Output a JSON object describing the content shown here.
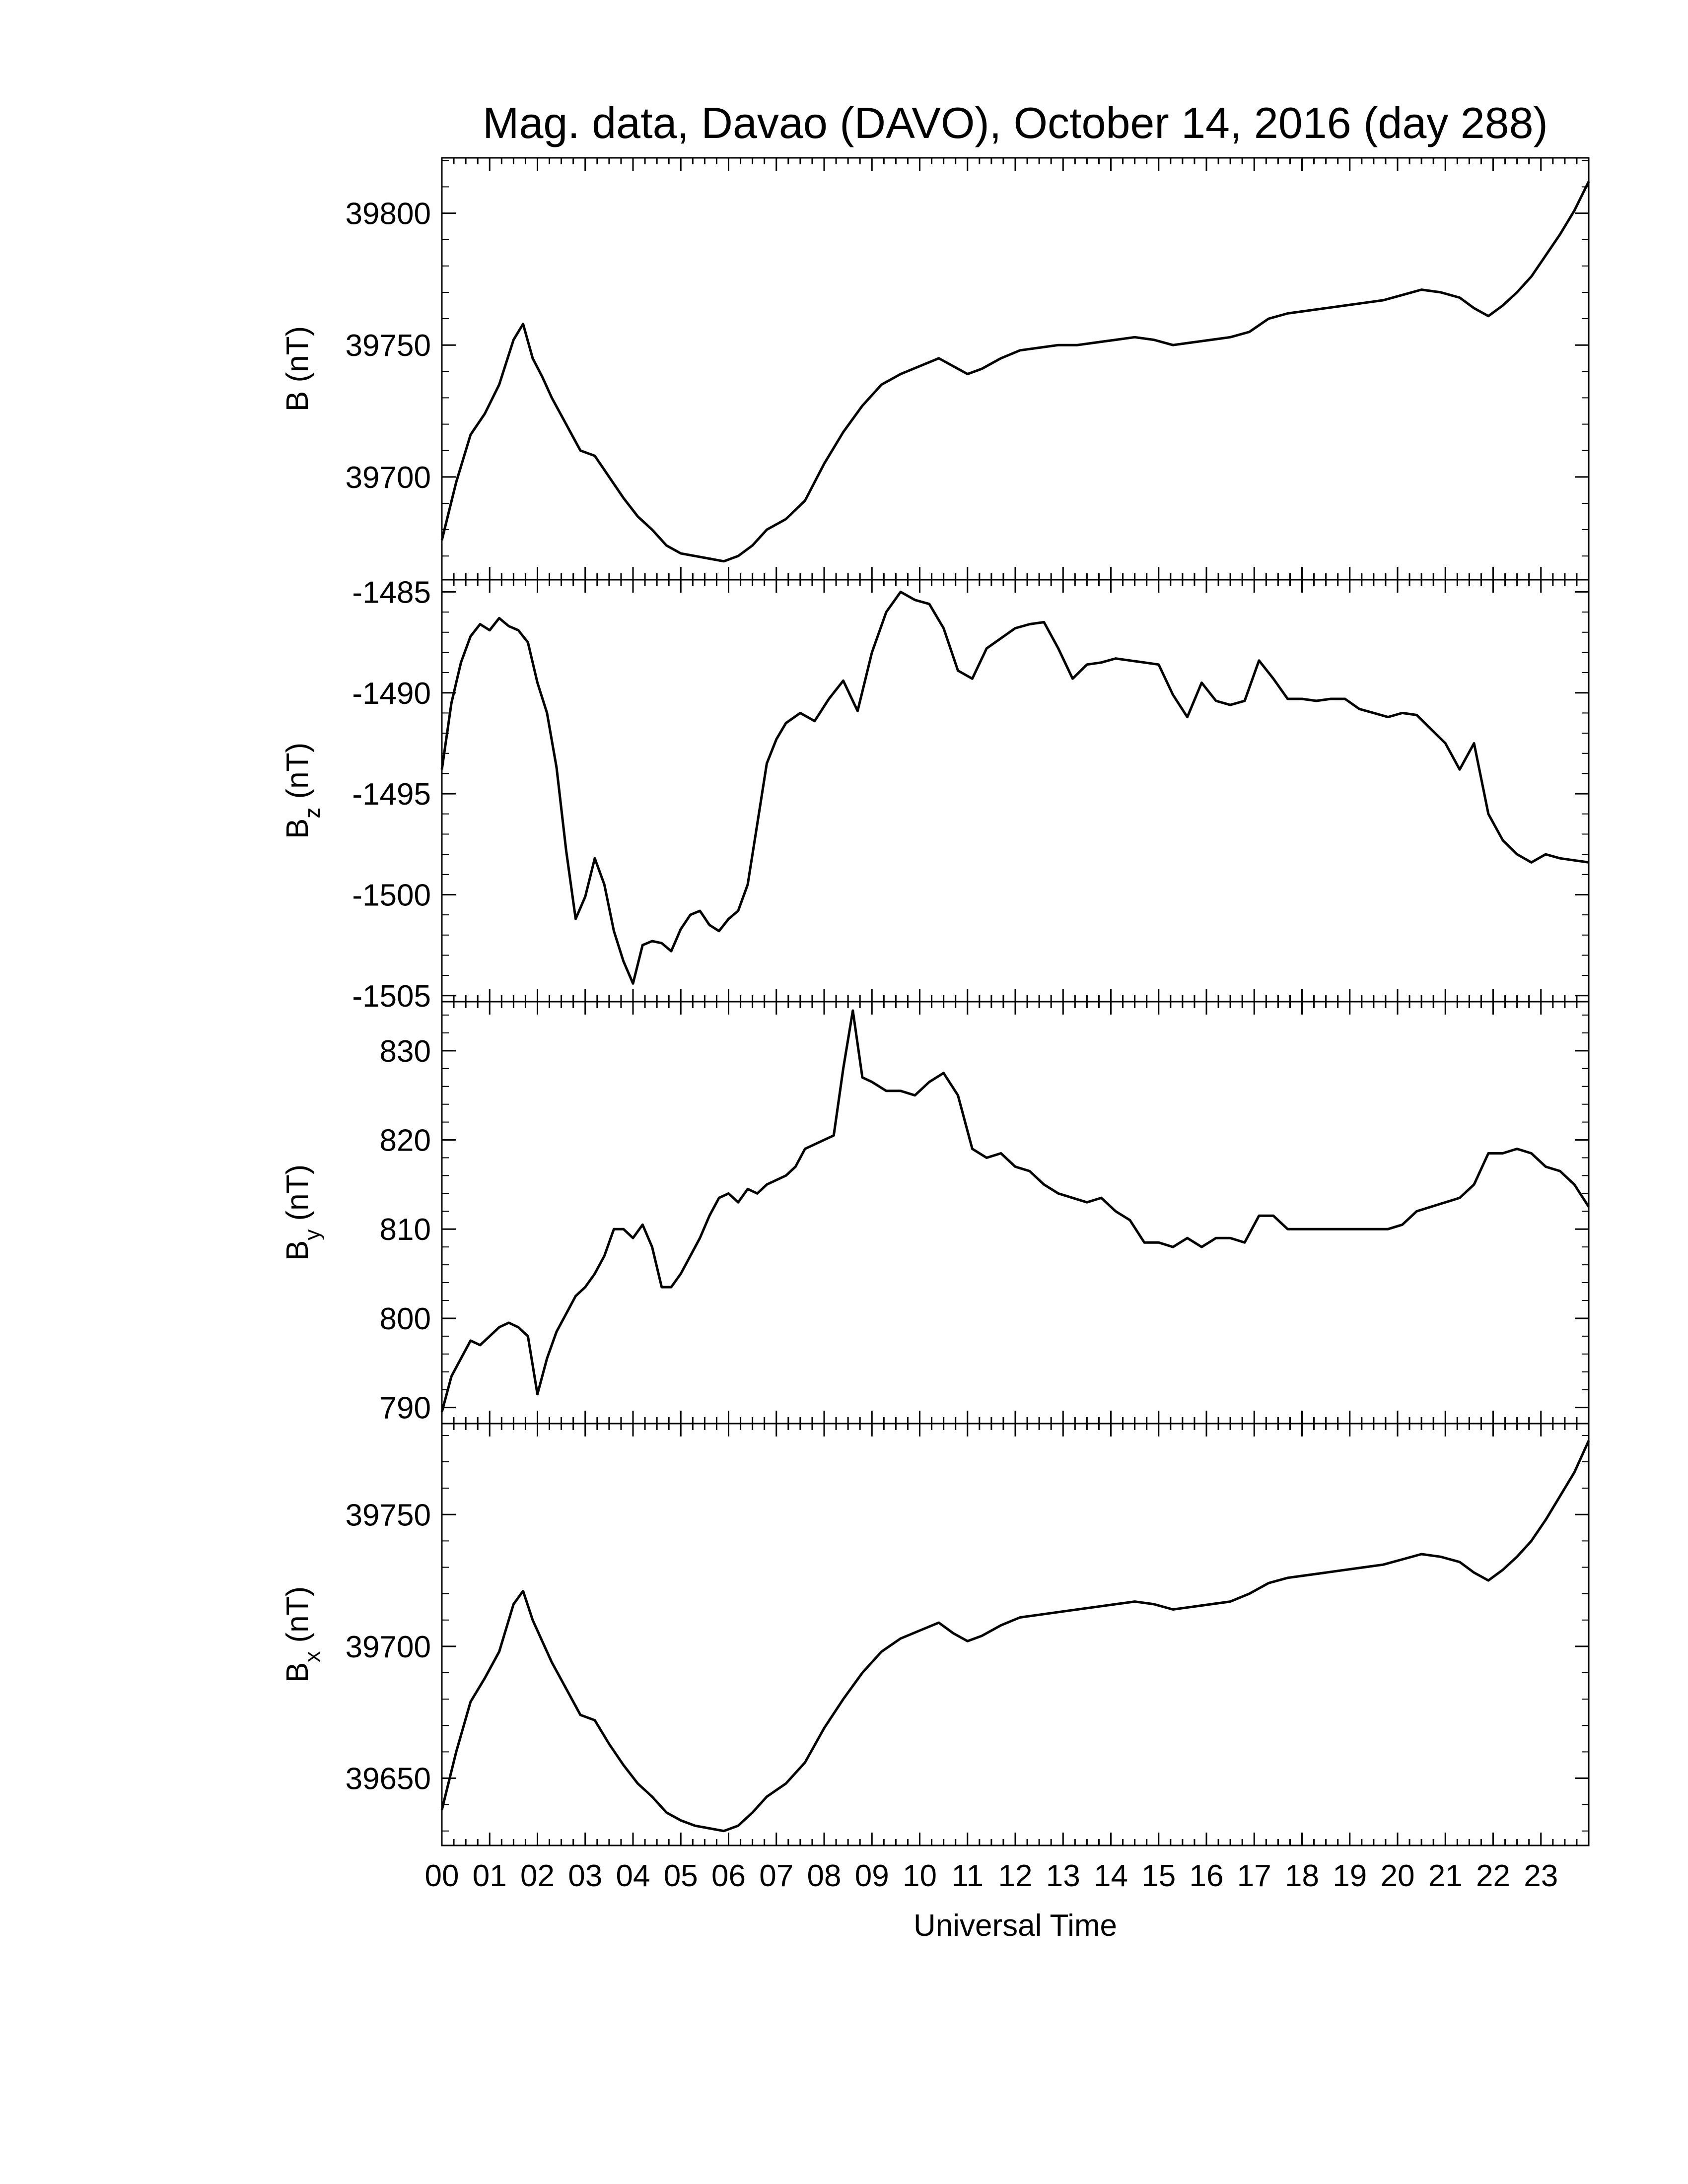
{
  "title": "Mag. data, Davao (DAVO), October 14, 2016 (day 288)",
  "x_axis": {
    "label": "Universal Time",
    "tick_labels": [
      "00",
      "01",
      "02",
      "03",
      "04",
      "05",
      "06",
      "07",
      "08",
      "09",
      "10",
      "11",
      "12",
      "13",
      "14",
      "15",
      "16",
      "17",
      "18",
      "19",
      "20",
      "21",
      "22",
      "23"
    ]
  },
  "style": {
    "line_color": "#000000",
    "background": "#ffffff"
  },
  "chart_data": [
    {
      "type": "line",
      "name": "B",
      "ylabel": {
        "main": "B",
        "sub": "",
        "unit": " (nT)"
      },
      "ylim": [
        39661,
        39821
      ],
      "yticks": [
        39700,
        39750,
        39800
      ],
      "ytick_labels": [
        "39700",
        "39750",
        "39800"
      ],
      "x": [
        0,
        0.3,
        0.6,
        0.9,
        1.2,
        1.5,
        1.7,
        1.9,
        2.1,
        2.3,
        2.6,
        2.9,
        3.2,
        3.5,
        3.8,
        4.1,
        4.4,
        4.7,
        5.0,
        5.3,
        5.6,
        5.9,
        6.2,
        6.5,
        6.8,
        7.2,
        7.6,
        8.0,
        8.4,
        8.8,
        9.2,
        9.6,
        10.0,
        10.4,
        10.7,
        11.0,
        11.3,
        11.7,
        12.1,
        12.5,
        12.9,
        13.3,
        13.7,
        14.1,
        14.5,
        14.9,
        15.3,
        15.7,
        16.1,
        16.5,
        16.9,
        17.3,
        17.7,
        18.1,
        18.5,
        18.9,
        19.3,
        19.7,
        20.1,
        20.5,
        20.9,
        21.3,
        21.6,
        21.9,
        22.2,
        22.5,
        22.8,
        23.1,
        23.4,
        23.7,
        24.0
      ],
      "y": [
        39676,
        39698,
        39716,
        39724,
        39735,
        39752,
        39758,
        39745,
        39738,
        39730,
        39720,
        39710,
        39708,
        39700,
        39692,
        39685,
        39680,
        39674,
        39671,
        39670,
        39669,
        39668,
        39670,
        39674,
        39680,
        39684,
        39691,
        39705,
        39717,
        39727,
        39735,
        39739,
        39742,
        39745,
        39742,
        39739,
        39741,
        39745,
        39748,
        39749,
        39750,
        39750,
        39751,
        39752,
        39753,
        39752,
        39750,
        39751,
        39752,
        39753,
        39755,
        39760,
        39762,
        39763,
        39764,
        39765,
        39766,
        39767,
        39769,
        39771,
        39770,
        39768,
        39764,
        39761,
        39765,
        39770,
        39776,
        39784,
        39792,
        39801,
        39812
      ]
    },
    {
      "type": "line",
      "name": "Bz",
      "ylabel": {
        "main": "B",
        "sub": "z",
        "unit": " (nT)"
      },
      "ylim": [
        -1505.3,
        -1484.4
      ],
      "yticks": [
        -1505,
        -1500,
        -1495,
        -1490,
        -1485
      ],
      "ytick_labels": [
        "-1505",
        "-1500",
        "-1495",
        "-1490",
        "-1485"
      ],
      "x": [
        0,
        0.2,
        0.4,
        0.6,
        0.8,
        1.0,
        1.2,
        1.4,
        1.6,
        1.8,
        2.0,
        2.2,
        2.4,
        2.6,
        2.8,
        3.0,
        3.2,
        3.4,
        3.6,
        3.8,
        4.0,
        4.2,
        4.4,
        4.6,
        4.8,
        5.0,
        5.2,
        5.4,
        5.6,
        5.8,
        6.0,
        6.2,
        6.4,
        6.6,
        6.8,
        7.0,
        7.2,
        7.5,
        7.8,
        8.1,
        8.4,
        8.7,
        9.0,
        9.3,
        9.6,
        9.9,
        10.2,
        10.5,
        10.8,
        11.1,
        11.4,
        11.7,
        12.0,
        12.3,
        12.6,
        12.9,
        13.2,
        13.5,
        13.8,
        14.1,
        14.4,
        14.7,
        15.0,
        15.3,
        15.6,
        15.9,
        16.2,
        16.5,
        16.8,
        17.1,
        17.4,
        17.7,
        18.0,
        18.3,
        18.6,
        18.9,
        19.2,
        19.5,
        19.8,
        20.1,
        20.4,
        20.7,
        21.0,
        21.3,
        21.6,
        21.9,
        22.2,
        22.5,
        22.8,
        23.1,
        23.4,
        23.7,
        24.0
      ],
      "y": [
        -1493.8,
        -1490.5,
        -1488.5,
        -1487.2,
        -1486.6,
        -1486.9,
        -1486.3,
        -1486.7,
        -1486.9,
        -1487.5,
        -1489.5,
        -1491.0,
        -1493.7,
        -1497.8,
        -1501.2,
        -1500.1,
        -1498.2,
        -1499.5,
        -1501.8,
        -1503.3,
        -1504.4,
        -1502.5,
        -1502.3,
        -1502.4,
        -1502.8,
        -1501.7,
        -1501.0,
        -1500.8,
        -1501.5,
        -1501.8,
        -1501.2,
        -1500.8,
        -1499.5,
        -1496.5,
        -1493.5,
        -1492.3,
        -1491.5,
        -1491.0,
        -1491.4,
        -1490.3,
        -1489.4,
        -1490.9,
        -1488.0,
        -1486.0,
        -1485.0,
        -1485.4,
        -1485.6,
        -1486.8,
        -1488.9,
        -1489.3,
        -1487.8,
        -1487.3,
        -1486.8,
        -1486.6,
        -1486.5,
        -1487.8,
        -1489.3,
        -1488.6,
        -1488.5,
        -1488.3,
        -1488.4,
        -1488.5,
        -1488.6,
        -1490.1,
        -1491.2,
        -1489.5,
        -1490.4,
        -1490.6,
        -1490.4,
        -1488.4,
        -1489.3,
        -1490.3,
        -1490.3,
        -1490.4,
        -1490.3,
        -1490.3,
        -1490.8,
        -1491.0,
        -1491.2,
        -1491.0,
        -1491.1,
        -1491.8,
        -1492.5,
        -1493.8,
        -1492.5,
        -1496.0,
        -1497.3,
        -1498.0,
        -1498.4,
        -1498.0,
        -1498.2,
        -1498.3,
        -1498.4
      ]
    },
    {
      "type": "line",
      "name": "By",
      "ylabel": {
        "main": "B",
        "sub": "y",
        "unit": " (nT)"
      },
      "ylim": [
        788.2,
        835.5
      ],
      "yticks": [
        790,
        800,
        810,
        820,
        830
      ],
      "ytick_labels": [
        "790",
        "800",
        "810",
        "820",
        "830"
      ],
      "x": [
        0,
        0.2,
        0.4,
        0.6,
        0.8,
        1.0,
        1.2,
        1.4,
        1.6,
        1.8,
        2.0,
        2.2,
        2.4,
        2.6,
        2.8,
        3.0,
        3.2,
        3.4,
        3.6,
        3.8,
        4.0,
        4.2,
        4.4,
        4.6,
        4.8,
        5.0,
        5.2,
        5.4,
        5.6,
        5.8,
        6.0,
        6.2,
        6.4,
        6.6,
        6.8,
        7.0,
        7.2,
        7.4,
        7.6,
        7.8,
        8.0,
        8.2,
        8.4,
        8.6,
        8.8,
        9.0,
        9.3,
        9.6,
        9.9,
        10.2,
        10.5,
        10.8,
        11.1,
        11.4,
        11.7,
        12.0,
        12.3,
        12.6,
        12.9,
        13.2,
        13.5,
        13.8,
        14.1,
        14.4,
        14.7,
        15.0,
        15.3,
        15.6,
        15.9,
        16.2,
        16.5,
        16.8,
        17.1,
        17.4,
        17.7,
        18.0,
        18.3,
        18.6,
        18.9,
        19.2,
        19.5,
        19.8,
        20.1,
        20.4,
        20.7,
        21.0,
        21.3,
        21.6,
        21.9,
        22.2,
        22.5,
        22.8,
        23.1,
        23.4,
        23.7,
        24.0
      ],
      "y": [
        789.5,
        793.5,
        795.5,
        797.5,
        797.0,
        798.0,
        799.0,
        799.5,
        799.0,
        798.0,
        791.5,
        795.5,
        798.5,
        800.5,
        802.5,
        803.5,
        805.0,
        807.0,
        810.0,
        810.0,
        809.0,
        810.5,
        808.0,
        803.5,
        803.5,
        805.0,
        807.0,
        809.0,
        811.5,
        813.5,
        814.0,
        813.0,
        814.5,
        814.0,
        815.0,
        815.5,
        816.0,
        817.0,
        819.0,
        819.5,
        820.0,
        820.5,
        828.0,
        834.5,
        827.0,
        826.5,
        825.5,
        825.5,
        825.0,
        826.5,
        827.5,
        825.0,
        819.0,
        818.0,
        818.5,
        817.0,
        816.5,
        815.0,
        814.0,
        813.5,
        813.0,
        813.5,
        812.0,
        811.0,
        808.5,
        808.5,
        808.0,
        809.0,
        808.0,
        809.0,
        809.0,
        808.5,
        811.5,
        811.5,
        810.0,
        810.0,
        810.0,
        810.0,
        810.0,
        810.0,
        810.0,
        810.0,
        810.5,
        812.0,
        812.5,
        813.0,
        813.5,
        815.0,
        818.5,
        818.5,
        819.0,
        818.5,
        817.0,
        816.5,
        815.0,
        812.5
      ]
    },
    {
      "type": "line",
      "name": "Bx",
      "ylabel": {
        "main": "B",
        "sub": "x",
        "unit": " (nT)"
      },
      "ylim": [
        39624.5,
        39784.5
      ],
      "yticks": [
        39650,
        39700,
        39750
      ],
      "ytick_labels": [
        "39650",
        "39700",
        "39750"
      ],
      "x": [
        0,
        0.3,
        0.6,
        0.9,
        1.2,
        1.5,
        1.7,
        1.9,
        2.1,
        2.3,
        2.6,
        2.9,
        3.2,
        3.5,
        3.8,
        4.1,
        4.4,
        4.7,
        5.0,
        5.3,
        5.6,
        5.9,
        6.2,
        6.5,
        6.8,
        7.2,
        7.6,
        8.0,
        8.4,
        8.8,
        9.2,
        9.6,
        10.0,
        10.4,
        10.7,
        11.0,
        11.3,
        11.7,
        12.1,
        12.5,
        12.9,
        13.3,
        13.7,
        14.1,
        14.5,
        14.9,
        15.3,
        15.7,
        16.1,
        16.5,
        16.9,
        17.3,
        17.7,
        18.1,
        18.5,
        18.9,
        19.3,
        19.7,
        20.1,
        20.5,
        20.9,
        21.3,
        21.6,
        21.9,
        22.2,
        22.5,
        22.8,
        23.1,
        23.4,
        23.7,
        24.0
      ],
      "y": [
        39638,
        39660,
        39679,
        39688,
        39698,
        39716,
        39721,
        39710,
        39702,
        39694,
        39684,
        39674,
        39672,
        39663,
        39655,
        39648,
        39643,
        39637,
        39634,
        39632,
        39631,
        39630,
        39632,
        39637,
        39643,
        39648,
        39656,
        39669,
        39680,
        39690,
        39698,
        39703,
        39706,
        39709,
        39705,
        39702,
        39704,
        39708,
        39711,
        39712,
        39713,
        39714,
        39715,
        39716,
        39717,
        39716,
        39714,
        39715,
        39716,
        39717,
        39720,
        39724,
        39726,
        39727,
        39728,
        39729,
        39730,
        39731,
        39733,
        39735,
        39734,
        39732,
        39728,
        39725,
        39729,
        39734,
        39740,
        39748,
        39757,
        39766,
        39778
      ]
    }
  ]
}
